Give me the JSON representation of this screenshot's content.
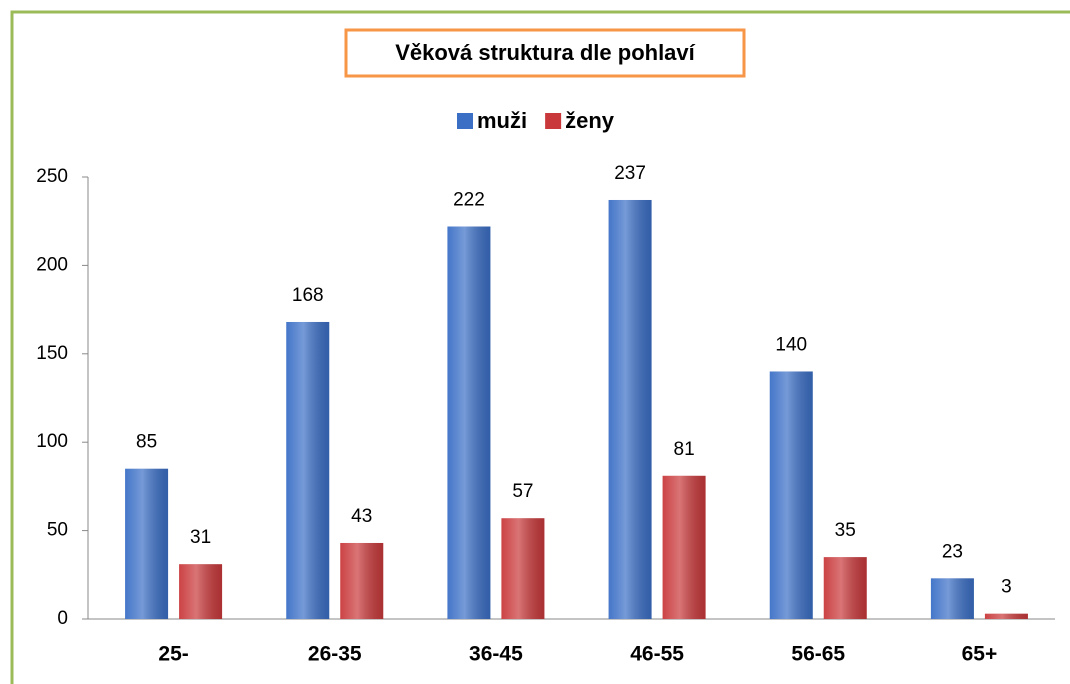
{
  "chart_data": {
    "type": "bar",
    "title": "Věková struktura dle pohlaví",
    "categories": [
      "25-",
      "26-35",
      "36-45",
      "46-55",
      "56-65",
      "65+"
    ],
    "series": [
      {
        "name": "muži",
        "color": "#3b6fc6",
        "values": [
          85,
          168,
          222,
          237,
          140,
          23
        ]
      },
      {
        "name": "ženy",
        "color": "#c9393b",
        "values": [
          31,
          43,
          57,
          81,
          35,
          3
        ]
      }
    ],
    "ylim": [
      0,
      250
    ],
    "yticks": [
      0,
      50,
      100,
      150,
      200,
      250
    ],
    "legend": "top"
  }
}
